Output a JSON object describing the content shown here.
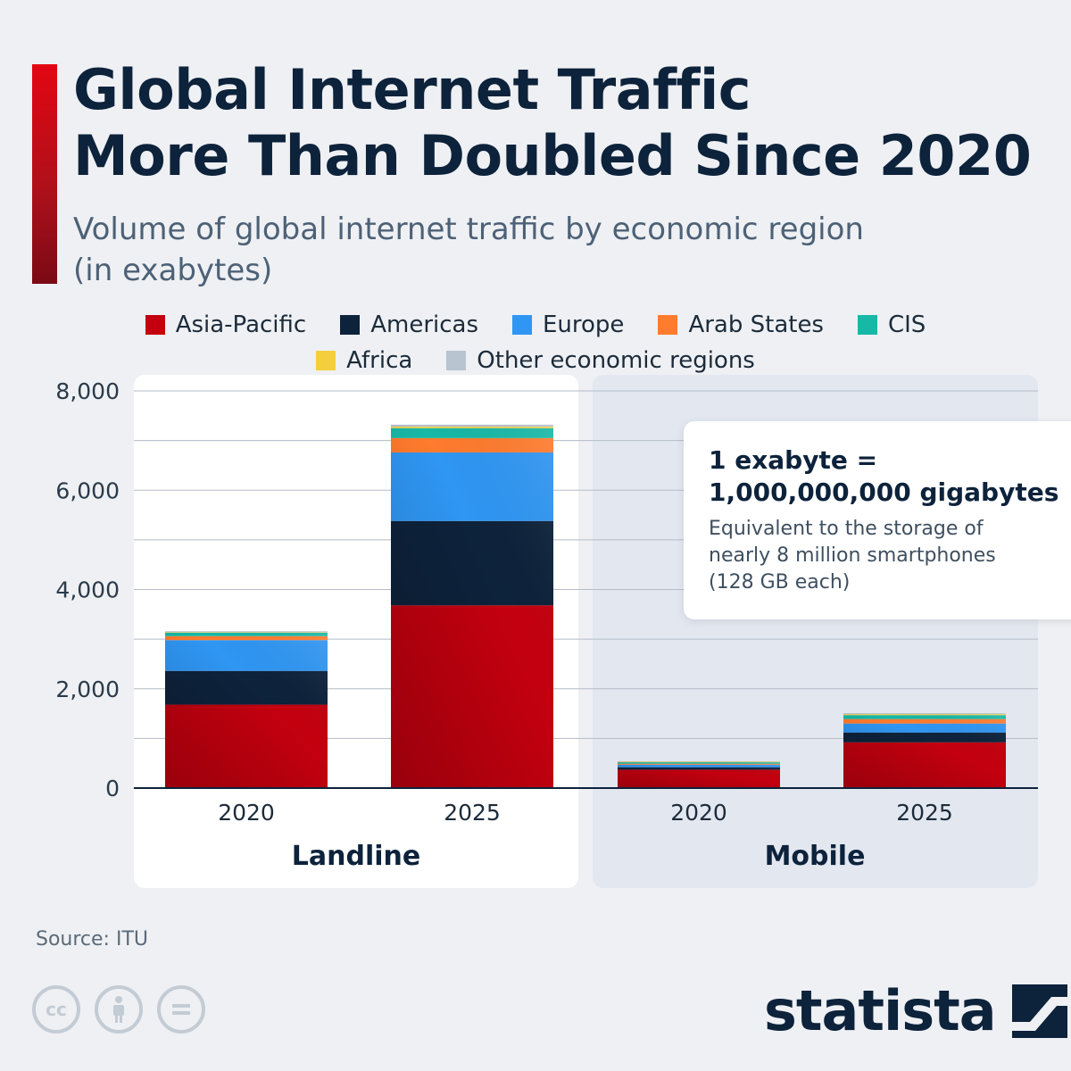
{
  "title": "Global Internet Traffic\nMore Than Doubled Since 2020",
  "subtitle": "Volume of global internet traffic by economic region\n(in exabytes)",
  "source": "Source: ITU",
  "brand": "statista",
  "info_box": {
    "heading": "1 exabyte =\n1,000,000,000 gigabytes",
    "body": "Equivalent to the storage of\nnearly 8 million smartphones\n(128 GB each)"
  },
  "license_icons": [
    "cc-icon",
    "attribution-icon",
    "no-derivatives-icon"
  ],
  "chart_data": {
    "type": "bar",
    "stacked": true,
    "groups": [
      {
        "label": "Landline",
        "categories": [
          "2020",
          "2025"
        ]
      },
      {
        "label": "Mobile",
        "categories": [
          "2020",
          "2025"
        ]
      }
    ],
    "categories": [
      "2020",
      "2025",
      "2020",
      "2025"
    ],
    "series": [
      {
        "name": "Asia-Pacific",
        "color": "#c4000f",
        "values": [
          1680,
          3680,
          370,
          920
        ]
      },
      {
        "name": "Americas",
        "color": "#0d223b",
        "values": [
          680,
          1700,
          50,
          200
        ]
      },
      {
        "name": "Europe",
        "color": "#2f96f3",
        "values": [
          620,
          1380,
          50,
          180
        ]
      },
      {
        "name": "Arab States",
        "color": "#ff7b2d",
        "values": [
          80,
          290,
          20,
          90
        ]
      },
      {
        "name": "CIS",
        "color": "#17b8a6",
        "values": [
          70,
          200,
          30,
          80
        ]
      },
      {
        "name": "Africa",
        "color": "#f5cf3b",
        "values": [
          10,
          30,
          10,
          20
        ]
      },
      {
        "name": "Other economic regions",
        "color": "#b8c4cf",
        "values": [
          20,
          40,
          10,
          20
        ]
      }
    ],
    "ylim": [
      0,
      8000
    ],
    "y_ticks": [
      "8,000",
      "6,000",
      "4,000",
      "2,000",
      "0"
    ],
    "y_tick_values": [
      8000,
      6000,
      4000,
      2000,
      0
    ],
    "grid": true,
    "legend_position": "top"
  }
}
